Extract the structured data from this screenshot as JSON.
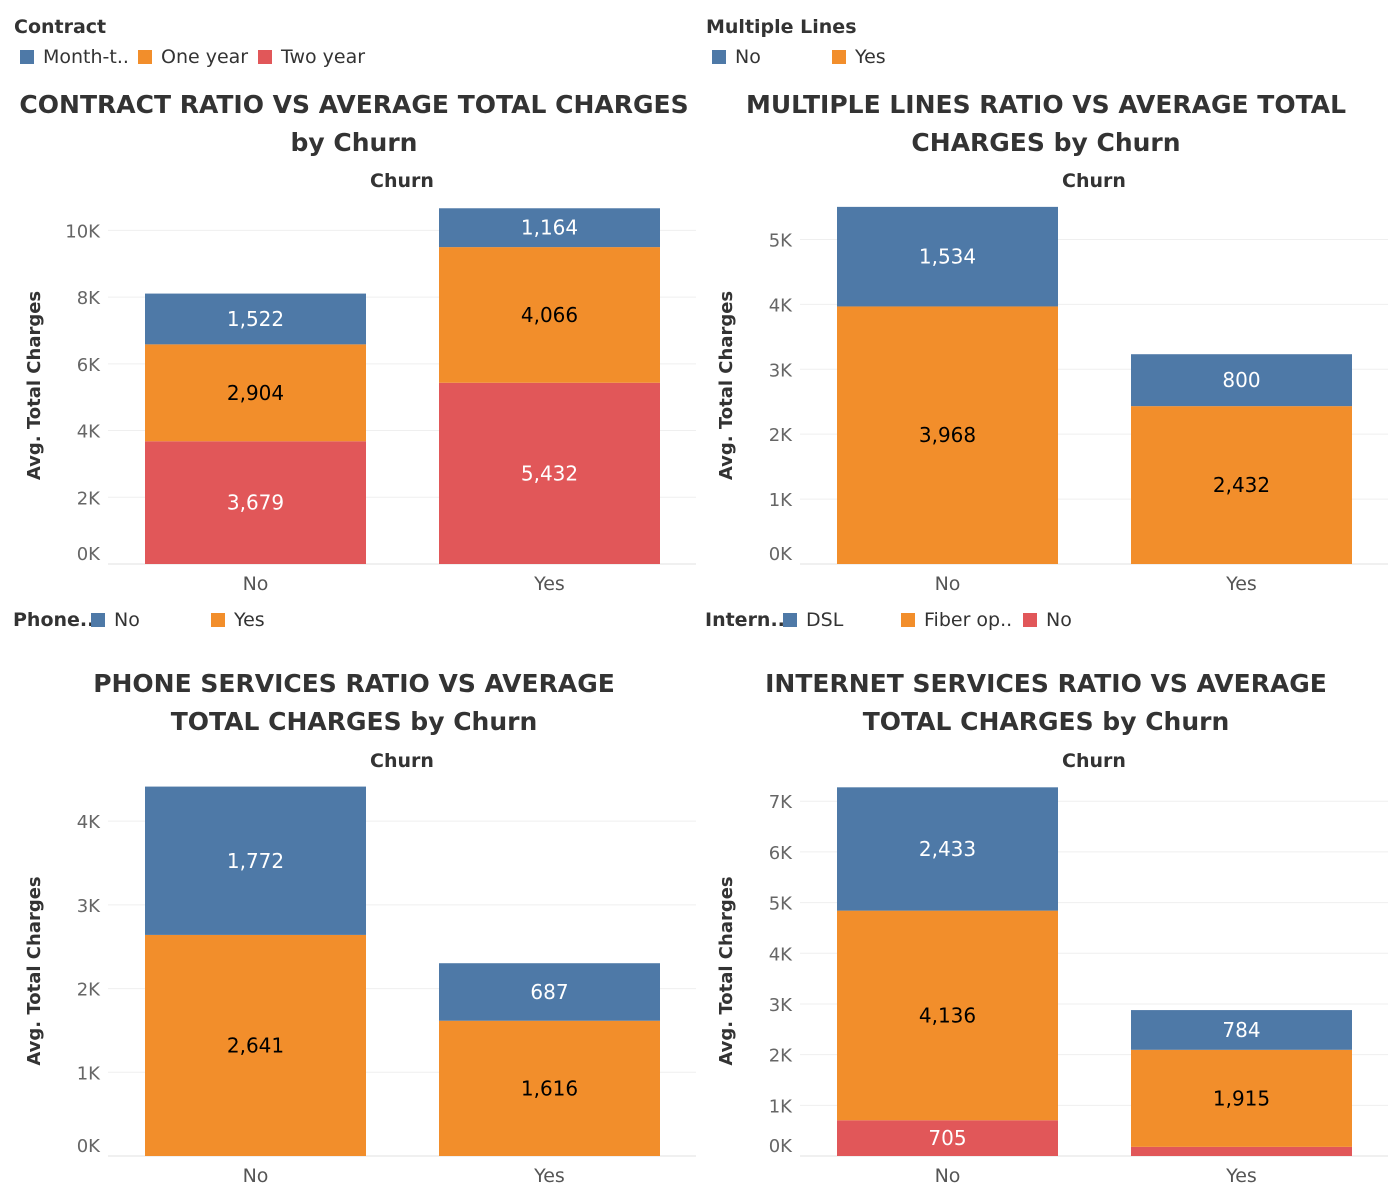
{
  "colors": {
    "blue": "#4e79a7",
    "orange": "#f28e2b",
    "red": "#e15759"
  },
  "legends": [
    {
      "title": "Contract",
      "inline": false,
      "items": [
        {
          "label": "Month-t..",
          "color": "#4e79a7"
        },
        {
          "label": "One year",
          "color": "#f28e2b"
        },
        {
          "label": "Two year",
          "color": "#e15759"
        }
      ]
    },
    {
      "title": "Multiple Lines",
      "inline": false,
      "items": [
        {
          "label": "No",
          "color": "#4e79a7"
        },
        {
          "label": "Yes",
          "color": "#f28e2b"
        }
      ]
    },
    {
      "title": "Phone..",
      "inline": true,
      "items": [
        {
          "label": "No",
          "color": "#4e79a7"
        },
        {
          "label": "Yes",
          "color": "#f28e2b"
        }
      ]
    },
    {
      "title": "Intern..",
      "inline": true,
      "items": [
        {
          "label": "DSL",
          "color": "#4e79a7"
        },
        {
          "label": "Fiber op..",
          "color": "#f28e2b"
        },
        {
          "label": "No",
          "color": "#e15759"
        }
      ]
    }
  ],
  "chart_data": [
    {
      "type": "bar",
      "stacked": true,
      "title": "CONTRACT RATIO VS AVERAGE TOTAL CHARGES by Churn",
      "column_header": "Churn",
      "xlabel": "",
      "ylabel": "Avg. Total Charges",
      "ylim": [
        0,
        10700
      ],
      "yticks": [
        0,
        2000,
        4000,
        6000,
        8000,
        10000
      ],
      "ytick_labels": [
        "0K",
        "2K",
        "4K",
        "6K",
        "8K",
        "10K"
      ],
      "categories": [
        "No",
        "Yes"
      ],
      "series": [
        {
          "name": "Two year",
          "color": "#e15759",
          "values": [
            3679,
            5432
          ],
          "labels": [
            "3,679",
            "5,432"
          ],
          "label_color": "#ffffff"
        },
        {
          "name": "One year",
          "color": "#f28e2b",
          "values": [
            2904,
            4066
          ],
          "labels": [
            "2,904",
            "4,066"
          ],
          "label_color": "#000000"
        },
        {
          "name": "Month-t..",
          "color": "#4e79a7",
          "values": [
            1522,
            1164
          ],
          "labels": [
            "1,522",
            "1,164"
          ],
          "label_color": "#ffffff"
        }
      ],
      "legend": "top-left"
    },
    {
      "type": "bar",
      "stacked": true,
      "title": "MULTIPLE LINES RATIO VS AVERAGE TOTAL CHARGES by Churn",
      "column_header": "Churn",
      "xlabel": "",
      "ylabel": "Avg. Total Charges",
      "ylim": [
        0,
        5500
      ],
      "yticks": [
        0,
        1000,
        2000,
        3000,
        4000,
        5000
      ],
      "ytick_labels": [
        "0K",
        "1K",
        "2K",
        "3K",
        "4K",
        "5K"
      ],
      "categories": [
        "No",
        "Yes"
      ],
      "series": [
        {
          "name": "Yes",
          "color": "#f28e2b",
          "values": [
            3968,
            2432
          ],
          "labels": [
            "3,968",
            "2,432"
          ],
          "label_color": "#000000"
        },
        {
          "name": "No",
          "color": "#4e79a7",
          "values": [
            1534,
            800
          ],
          "labels": [
            "1,534",
            "800"
          ],
          "label_color": "#ffffff"
        }
      ],
      "legend": "top-left"
    },
    {
      "type": "bar",
      "stacked": true,
      "title": "PHONE SERVICES RATIO VS AVERAGE TOTAL CHARGES by Churn",
      "column_header": "Churn",
      "xlabel": "",
      "ylabel": "Avg. Total Charges",
      "ylim": [
        0,
        4420
      ],
      "yticks": [
        0,
        1000,
        2000,
        3000,
        4000
      ],
      "ytick_labels": [
        "0K",
        "1K",
        "2K",
        "3K",
        "4K"
      ],
      "categories": [
        "No",
        "Yes"
      ],
      "series": [
        {
          "name": "Yes",
          "color": "#f28e2b",
          "values": [
            2641,
            1616
          ],
          "labels": [
            "2,641",
            "1,616"
          ],
          "label_color": "#000000"
        },
        {
          "name": "No",
          "color": "#4e79a7",
          "values": [
            1772,
            687
          ],
          "labels": [
            "1,772",
            "687"
          ],
          "label_color": "#ffffff"
        }
      ],
      "legend": "top-left"
    },
    {
      "type": "bar",
      "stacked": true,
      "title": "INTERNET SERVICES RATIO VS AVERAGE TOTAL CHARGES by Churn",
      "column_header": "Churn",
      "xlabel": "",
      "ylabel": "Avg. Total Charges",
      "ylim": [
        0,
        7300
      ],
      "yticks": [
        0,
        1000,
        2000,
        3000,
        4000,
        5000,
        6000,
        7000
      ],
      "ytick_labels": [
        "0K",
        "1K",
        "2K",
        "3K",
        "4K",
        "5K",
        "6K",
        "7K"
      ],
      "categories": [
        "No",
        "Yes"
      ],
      "series": [
        {
          "name": "No",
          "color": "#e15759",
          "values": [
            705,
            180
          ],
          "labels": [
            "705",
            ""
          ],
          "label_color": "#ffffff"
        },
        {
          "name": "Fiber op..",
          "color": "#f28e2b",
          "values": [
            4136,
            1915
          ],
          "labels": [
            "4,136",
            "1,915"
          ],
          "label_color": "#000000"
        },
        {
          "name": "DSL",
          "color": "#4e79a7",
          "values": [
            2433,
            784
          ],
          "labels": [
            "2,433",
            "784"
          ],
          "label_color": "#ffffff"
        }
      ],
      "legend": "top-left"
    }
  ]
}
